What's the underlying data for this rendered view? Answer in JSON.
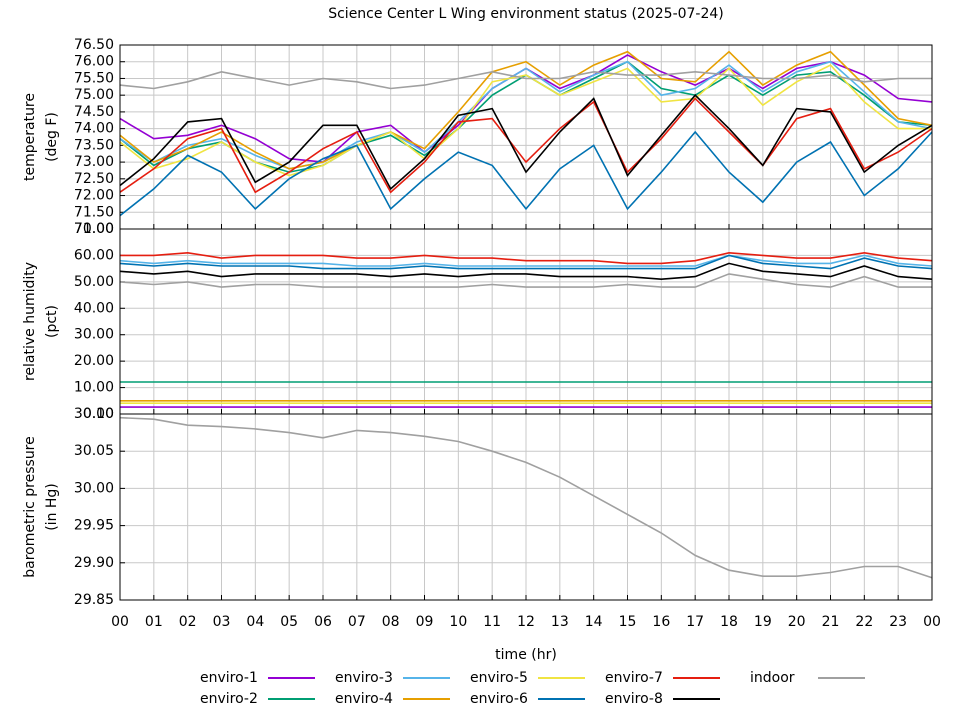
{
  "chart_data": [
    {
      "type": "line",
      "title": "Science Center L Wing environment status (2025-07-24)",
      "ylabel": [
        "temperature",
        "(deg F)"
      ],
      "x": [
        0,
        1,
        2,
        3,
        4,
        5,
        6,
        7,
        8,
        9,
        10,
        11,
        12,
        13,
        14,
        15,
        16,
        17,
        18,
        19,
        20,
        21,
        22,
        23,
        24
      ],
      "ylim": [
        71,
        76.5
      ],
      "yticks": [
        {
          "value": 71,
          "label": "71.00"
        },
        {
          "value": 71.5,
          "label": "71.50"
        },
        {
          "value": 72,
          "label": "72.00"
        },
        {
          "value": 72.5,
          "label": "72.50"
        },
        {
          "value": 73,
          "label": "73.00"
        },
        {
          "value": 73.5,
          "label": "73.50"
        },
        {
          "value": 74,
          "label": "74.00"
        },
        {
          "value": 74.5,
          "label": "74.50"
        },
        {
          "value": 75,
          "label": "75.00"
        },
        {
          "value": 75.5,
          "label": "75.50"
        },
        {
          "value": 76,
          "label": "76.00"
        },
        {
          "value": 76.5,
          "label": "76.50"
        }
      ],
      "grid": true,
      "series": [
        {
          "name": "enviro-1",
          "color": "#9400d3",
          "values": [
            74.3,
            73.7,
            73.8,
            74.1,
            73.7,
            73.1,
            73.0,
            73.9,
            74.1,
            73.3,
            74.1,
            75.2,
            75.8,
            75.2,
            75.6,
            76.2,
            75.7,
            75.3,
            75.8,
            75.2,
            75.8,
            76.0,
            75.6,
            74.9,
            74.8
          ]
        },
        {
          "name": "enviro-2",
          "color": "#009e73",
          "values": [
            73.7,
            72.9,
            73.4,
            73.6,
            73.0,
            72.7,
            72.9,
            73.5,
            73.8,
            73.2,
            74.0,
            75.0,
            75.6,
            75.0,
            75.5,
            76.0,
            75.2,
            75.0,
            75.6,
            75.0,
            75.6,
            75.7,
            75.0,
            74.2,
            74.1
          ]
        },
        {
          "name": "enviro-3",
          "color": "#56b4e9",
          "values": [
            73.7,
            73.0,
            73.5,
            73.7,
            73.2,
            72.8,
            73.0,
            73.6,
            73.9,
            73.3,
            74.2,
            75.2,
            75.8,
            75.1,
            75.6,
            76.0,
            75.0,
            75.2,
            75.9,
            75.1,
            75.7,
            76.0,
            75.1,
            74.2,
            74.0
          ]
        },
        {
          "name": "enviro-4",
          "color": "#e69f00",
          "values": [
            73.8,
            73.0,
            73.4,
            73.9,
            73.3,
            72.8,
            73.0,
            73.5,
            73.9,
            73.4,
            74.5,
            75.7,
            76.0,
            75.3,
            75.9,
            76.3,
            75.5,
            75.4,
            76.3,
            75.3,
            75.9,
            76.3,
            75.3,
            74.3,
            74.1
          ]
        },
        {
          "name": "enviro-5",
          "color": "#f0e442",
          "values": [
            73.6,
            72.8,
            73.1,
            73.6,
            73.0,
            72.6,
            72.9,
            73.5,
            73.9,
            73.1,
            74.0,
            75.4,
            75.6,
            75.0,
            75.4,
            75.8,
            74.8,
            74.9,
            75.8,
            74.7,
            75.4,
            75.9,
            74.8,
            74.0,
            74.0
          ]
        },
        {
          "name": "enviro-6",
          "color": "#0072b2",
          "values": [
            71.4,
            72.2,
            73.2,
            72.7,
            71.6,
            72.5,
            73.1,
            73.5,
            71.6,
            72.5,
            73.3,
            72.9,
            71.6,
            72.8,
            73.5,
            71.6,
            72.7,
            73.9,
            72.7,
            71.8,
            73.0,
            73.6,
            72.0,
            72.8,
            73.9
          ]
        },
        {
          "name": "enviro-7",
          "color": "#e51e10",
          "values": [
            72.1,
            72.8,
            73.7,
            74.0,
            72.1,
            72.7,
            73.4,
            73.9,
            72.1,
            73.0,
            74.2,
            74.3,
            73.0,
            74.0,
            74.8,
            72.7,
            73.7,
            74.9,
            73.9,
            72.9,
            74.3,
            74.6,
            72.8,
            73.3,
            74.0
          ]
        },
        {
          "name": "enviro-8",
          "color": "#000000",
          "values": [
            72.3,
            73.1,
            74.2,
            74.3,
            72.4,
            73.0,
            74.1,
            74.1,
            72.2,
            73.1,
            74.4,
            74.6,
            72.7,
            73.9,
            74.9,
            72.6,
            73.8,
            75.0,
            74.0,
            72.9,
            74.6,
            74.5,
            72.7,
            73.5,
            74.1
          ]
        },
        {
          "name": "indoor",
          "color": "#a0a0a0",
          "values": [
            75.3,
            75.2,
            75.4,
            75.7,
            75.5,
            75.3,
            75.5,
            75.4,
            75.2,
            75.3,
            75.5,
            75.7,
            75.5,
            75.5,
            75.7,
            75.6,
            75.6,
            75.7,
            75.6,
            75.5,
            75.5,
            75.6,
            75.4,
            75.5,
            75.5
          ]
        }
      ]
    },
    {
      "type": "line",
      "ylabel": [
        "relative humidity",
        "(pct)"
      ],
      "x": [
        0,
        1,
        2,
        3,
        4,
        5,
        6,
        7,
        8,
        9,
        10,
        11,
        12,
        13,
        14,
        15,
        16,
        17,
        18,
        19,
        20,
        21,
        22,
        23,
        24
      ],
      "ylim": [
        0,
        70
      ],
      "yticks": [
        {
          "value": 0,
          "label": "0.00"
        },
        {
          "value": 10,
          "label": "10.00"
        },
        {
          "value": 20,
          "label": "20.00"
        },
        {
          "value": 30,
          "label": "30.00"
        },
        {
          "value": 40,
          "label": "40.00"
        },
        {
          "value": 50,
          "label": "50.00"
        },
        {
          "value": 60,
          "label": "60.00"
        },
        {
          "value": 70,
          "label": "70.00"
        }
      ],
      "grid": true,
      "series": [
        {
          "color": "#9400d3",
          "values": [
            2.6,
            2.6,
            2.6,
            2.6,
            2.6,
            2.6,
            2.6,
            2.6,
            2.6,
            2.6,
            2.6,
            2.6,
            2.6,
            2.6,
            2.6,
            2.6,
            2.6,
            2.6,
            2.6,
            2.6,
            2.6,
            2.6,
            2.6,
            2.6,
            2.6
          ]
        },
        {
          "color": "#009e73",
          "values": [
            12.1,
            12.1,
            12.1,
            12.1,
            12.1,
            12.1,
            12.1,
            12.1,
            12.1,
            12.1,
            12.1,
            12.1,
            12.1,
            12.1,
            12.1,
            12.1,
            12.1,
            12.1,
            12.1,
            12.1,
            12.1,
            12.1,
            12.1,
            12.1,
            12.1
          ]
        },
        {
          "color": "#56b4e9",
          "values": [
            58,
            57,
            58,
            57,
            57,
            57,
            57,
            56,
            56,
            57,
            56,
            56,
            56,
            56,
            56,
            56,
            56,
            56,
            60,
            58,
            57,
            57,
            60,
            57,
            56
          ]
        },
        {
          "color": "#e69f00",
          "values": [
            5.0,
            5.0,
            5.0,
            5.0,
            5.0,
            5.0,
            5.0,
            5.0,
            5.0,
            5.0,
            5.0,
            5.0,
            5.0,
            5.0,
            5.0,
            5.0,
            5.0,
            5.0,
            5.0,
            5.0,
            5.0,
            5.0,
            5.0,
            5.0,
            5.0
          ]
        },
        {
          "color": "#f0e442",
          "values": [
            4.1,
            4.1,
            4.1,
            4.1,
            4.1,
            4.1,
            4.1,
            4.1,
            4.1,
            4.1,
            4.1,
            4.1,
            4.1,
            4.1,
            4.1,
            4.1,
            4.1,
            4.1,
            4.1,
            4.1,
            4.1,
            4.1,
            4.1,
            4.1,
            4.1
          ]
        },
        {
          "color": "#0072b2",
          "values": [
            57,
            56,
            57,
            56,
            56,
            56,
            55,
            55,
            55,
            56,
            55,
            55,
            55,
            55,
            55,
            55,
            55,
            55,
            60,
            57,
            56,
            55,
            59,
            56,
            55
          ]
        },
        {
          "color": "#e51e10",
          "values": [
            60,
            60,
            61,
            59,
            60,
            60,
            60,
            59,
            59,
            60,
            59,
            59,
            58,
            58,
            58,
            57,
            57,
            58,
            61,
            60,
            59,
            59,
            61,
            59,
            58
          ]
        },
        {
          "color": "#000000",
          "values": [
            54,
            53,
            54,
            52,
            53,
            53,
            53,
            53,
            52,
            53,
            52,
            53,
            53,
            52,
            52,
            52,
            51,
            52,
            57,
            54,
            53,
            52,
            56,
            52,
            51
          ]
        },
        {
          "color": "#a0a0a0",
          "values": [
            50,
            49,
            50,
            48,
            49,
            49,
            48,
            48,
            48,
            48,
            48,
            49,
            48,
            48,
            48,
            49,
            48,
            48,
            53,
            51,
            49,
            48,
            52,
            48,
            48
          ]
        }
      ]
    },
    {
      "type": "line",
      "ylabel": [
        "barometric pressure",
        "(in Hg)"
      ],
      "xlabel": "time (hr)",
      "x": [
        0,
        1,
        2,
        3,
        4,
        5,
        6,
        7,
        8,
        9,
        10,
        11,
        12,
        13,
        14,
        15,
        16,
        17,
        18,
        19,
        20,
        21,
        22,
        23,
        24
      ],
      "xlim": [
        0,
        24
      ],
      "xticks": [
        {
          "value": 0,
          "label": "00"
        },
        {
          "value": 1,
          "label": "01"
        },
        {
          "value": 2,
          "label": "02"
        },
        {
          "value": 3,
          "label": "03"
        },
        {
          "value": 4,
          "label": "04"
        },
        {
          "value": 5,
          "label": "05"
        },
        {
          "value": 6,
          "label": "06"
        },
        {
          "value": 7,
          "label": "07"
        },
        {
          "value": 8,
          "label": "08"
        },
        {
          "value": 9,
          "label": "09"
        },
        10,
        11,
        12,
        13,
        14,
        15,
        16,
        17,
        18,
        19,
        20,
        21,
        22,
        23,
        {
          "value": 24,
          "label": "00"
        }
      ],
      "ylim": [
        29.85,
        30.1
      ],
      "yticks": [
        {
          "value": 29.85,
          "label": "29.85"
        },
        {
          "value": 29.9,
          "label": "29.90"
        },
        {
          "value": 29.95,
          "label": "29.95"
        },
        {
          "value": 30.0,
          "label": "30.00"
        },
        {
          "value": 30.05,
          "label": "30.05"
        },
        {
          "value": 30.1,
          "label": "30.10"
        }
      ],
      "grid": true,
      "series": [
        {
          "color": "#a0a0a0",
          "values": [
            30.095,
            30.093,
            30.085,
            30.083,
            30.08,
            30.075,
            30.068,
            30.078,
            30.075,
            30.07,
            30.063,
            30.05,
            30.035,
            30.015,
            29.99,
            29.965,
            29.94,
            29.91,
            29.89,
            29.882,
            29.882,
            29.887,
            29.895,
            29.895,
            29.88
          ]
        }
      ]
    }
  ]
}
